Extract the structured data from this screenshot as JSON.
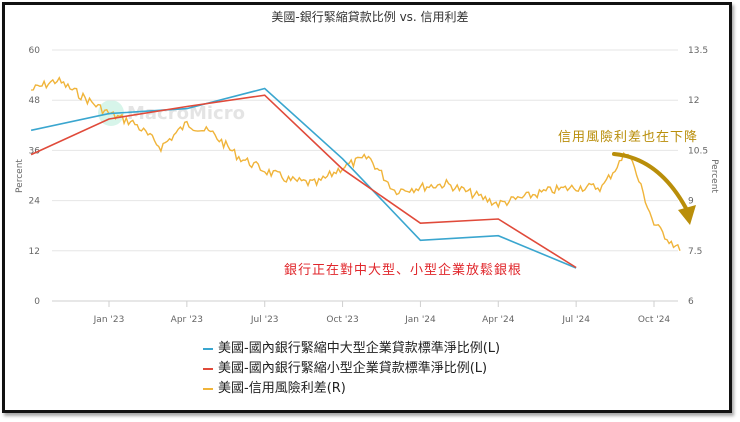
{
  "title": "美國-銀行緊縮貸款比例 vs. 信用利差",
  "watermark": "MacroMicro",
  "annotations": {
    "red": "銀行正在對中大型、小型企業放鬆銀根",
    "gold": "信用風險利差也在下降"
  },
  "legend": [
    {
      "label": "美國-國內銀行緊縮中大型企業貸款標準淨比例(L)",
      "color": "#3aa6cf"
    },
    {
      "label": "美國-國內銀行緊縮小型企業貸款標準淨比例(L)",
      "color": "#e04a3a"
    },
    {
      "label": "美國-信用風險利差(R)",
      "color": "#f0b43a"
    }
  ],
  "colors": {
    "blue": "#3aa6cf",
    "red": "#e04a3a",
    "yellow": "#f0b43a",
    "arrow": "#b98e0a",
    "grid": "#e6e6e6"
  },
  "chart_data": {
    "type": "line",
    "title": "美國-銀行緊縮貸款比例 vs. 信用利差",
    "xlabel": "",
    "ylabel": "Percent",
    "y2label": "Percent",
    "x_ticks": [
      "Jan '23",
      "Apr '23",
      "Jul '23",
      "Oct '23",
      "Jan '24",
      "Apr '24",
      "Jul '24",
      "Oct '24"
    ],
    "ylim": [
      0,
      60
    ],
    "y_ticks": [
      0,
      12,
      24,
      36,
      48,
      60
    ],
    "y2lim": [
      6,
      13.5
    ],
    "y2_ticks": [
      6,
      7.5,
      9,
      10.5,
      12,
      13.5
    ],
    "grid": true,
    "legend_position": "bottom",
    "series": [
      {
        "name": "美國-國內銀行緊縮中大型企業貸款標準淨比例(L)",
        "axis": "left",
        "x": [
          "Oct '22",
          "Jan '23",
          "Apr '23",
          "Jul '23",
          "Oct '23",
          "Jan '24",
          "Apr '24",
          "Jul '24"
        ],
        "values": [
          40.8,
          44.8,
          46.0,
          50.8,
          34.0,
          14.5,
          15.6,
          7.9
        ]
      },
      {
        "name": "美國-國內銀行緊縮小型企業貸款標準淨比例(L)",
        "axis": "left",
        "x": [
          "Oct '22",
          "Jan '23",
          "Apr '23",
          "Jul '23",
          "Oct '23",
          "Jan '24",
          "Apr '24",
          "Jul '24"
        ],
        "values": [
          35.0,
          43.5,
          46.5,
          49.2,
          31.5,
          18.6,
          19.6,
          8.0
        ]
      },
      {
        "name": "美國-信用風險利差(R)",
        "axis": "right",
        "x": [
          "Oct '22",
          "Nov '22",
          "Dec '22",
          "Jan '23",
          "Feb '23",
          "Mar '23",
          "Apr '23",
          "May '23",
          "Jun '23",
          "Jul '23",
          "Aug '23",
          "Sep '23",
          "Oct '23",
          "Nov '23",
          "Dec '23",
          "Jan '24",
          "Feb '24",
          "Mar '24",
          "Apr '24",
          "May '24",
          "Jun '24",
          "Jul '24",
          "Aug '24",
          "Sep '24",
          "Oct '24",
          "Nov '24"
        ],
        "values": [
          12.3,
          12.6,
          12.1,
          11.6,
          11.3,
          10.6,
          11.3,
          11.0,
          10.3,
          9.9,
          9.6,
          9.5,
          10.0,
          10.3,
          9.3,
          9.4,
          9.5,
          9.2,
          8.9,
          9.1,
          9.3,
          9.4,
          9.4,
          10.5,
          8.3,
          7.5
        ]
      }
    ]
  }
}
